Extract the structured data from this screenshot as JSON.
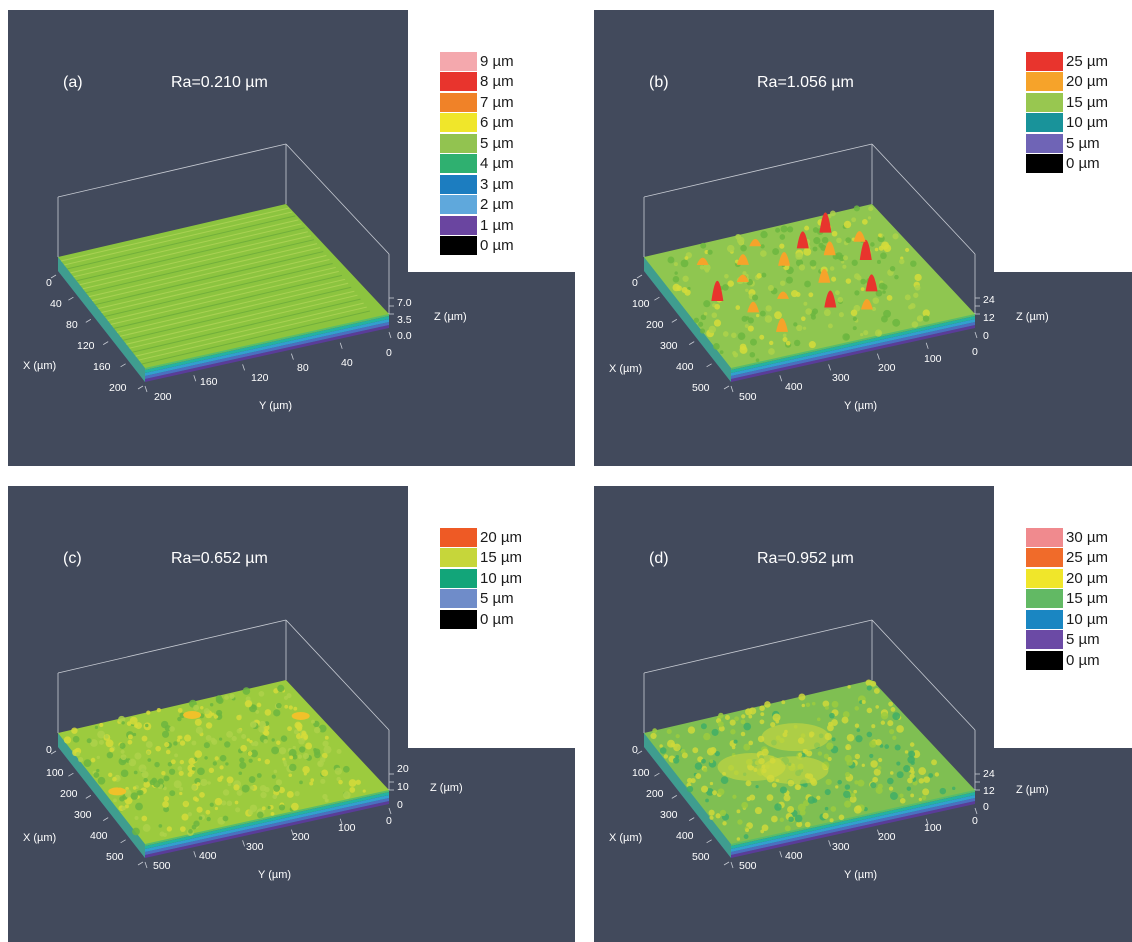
{
  "panels": [
    {
      "id": "a",
      "letter": "(a)",
      "ra": "Ra=0.210 µm",
      "legend": [
        {
          "label": "9 µm",
          "color": "#f4a8ad"
        },
        {
          "label": "8 µm",
          "color": "#e8342d"
        },
        {
          "label": "7 µm",
          "color": "#f08228"
        },
        {
          "label": "6 µm",
          "color": "#f0e62a"
        },
        {
          "label": "5 µm",
          "color": "#92c350"
        },
        {
          "label": "4 µm",
          "color": "#2fb070"
        },
        {
          "label": "3 µm",
          "color": "#1c7dc0"
        },
        {
          "label": "2 µm",
          "color": "#5fa8dc"
        },
        {
          "label": "1 µm",
          "color": "#6a45a0"
        },
        {
          "label": "0 µm",
          "color": "#000000"
        }
      ],
      "x_ticks": [
        "0",
        "40",
        "80",
        "120",
        "160",
        "200"
      ],
      "y_ticks": [
        "200",
        "160",
        "120",
        "80",
        "40",
        "0"
      ],
      "z_ticks": [
        "7.0",
        "3.5",
        "0.0"
      ],
      "x_label": "X (µm)",
      "y_label": "Y (µm)",
      "z_label": "Z (µm)",
      "surface": "striated"
    },
    {
      "id": "b",
      "letter": "(b)",
      "ra": "Ra=1.056 µm",
      "legend": [
        {
          "label": "25 µm",
          "color": "#e8342d"
        },
        {
          "label": "20 µm",
          "color": "#f6a32a"
        },
        {
          "label": "15 µm",
          "color": "#98c750"
        },
        {
          "label": "10 µm",
          "color": "#19939a"
        },
        {
          "label": "5 µm",
          "color": "#6f64b6"
        },
        {
          "label": "0 µm",
          "color": "#000000"
        }
      ],
      "x_ticks": [
        "0",
        "100",
        "200",
        "300",
        "400",
        "500"
      ],
      "y_ticks": [
        "500",
        "400",
        "300",
        "200",
        "100",
        "0"
      ],
      "z_ticks": [
        "24",
        "12",
        "0"
      ],
      "x_label": "X (µm)",
      "y_label": "Y (µm)",
      "z_label": "Z (µm)",
      "surface": "peaks"
    },
    {
      "id": "c",
      "letter": "(c)",
      "ra": "Ra=0.652 µm",
      "legend": [
        {
          "label": "20 µm",
          "color": "#ee5a25"
        },
        {
          "label": "15 µm",
          "color": "#c6d63a"
        },
        {
          "label": "10 µm",
          "color": "#12a579"
        },
        {
          "label": "5 µm",
          "color": "#6f8cc9"
        },
        {
          "label": "0 µm",
          "color": "#000000"
        }
      ],
      "x_ticks": [
        "0",
        "100",
        "200",
        "300",
        "400",
        "500"
      ],
      "y_ticks": [
        "500",
        "400",
        "300",
        "200",
        "100",
        "0"
      ],
      "z_ticks": [
        "20",
        "10",
        "0"
      ],
      "x_label": "X (µm)",
      "y_label": "Y (µm)",
      "z_label": "Z (µm)",
      "surface": "grainy"
    },
    {
      "id": "d",
      "letter": "(d)",
      "ra": "Ra=0.952 µm",
      "legend": [
        {
          "label": "30 µm",
          "color": "#f08a8e"
        },
        {
          "label": "25 µm",
          "color": "#f06b2a"
        },
        {
          "label": "20 µm",
          "color": "#f0e62a"
        },
        {
          "label": "15 µm",
          "color": "#62b964"
        },
        {
          "label": "10 µm",
          "color": "#1a86c2"
        },
        {
          "label": "5 µm",
          "color": "#6b4aa5"
        },
        {
          "label": "0 µm",
          "color": "#000000"
        }
      ],
      "x_ticks": [
        "0",
        "100",
        "200",
        "300",
        "400",
        "500"
      ],
      "y_ticks": [
        "500",
        "400",
        "300",
        "200",
        "100",
        "0"
      ],
      "z_ticks": [
        "24",
        "12",
        "0"
      ],
      "x_label": "X (µm)",
      "y_label": "Y (µm)",
      "z_label": "Z (µm)",
      "surface": "patchy"
    }
  ],
  "colors": {
    "background": "#424a5c",
    "axis_text": "#ffffff",
    "legend_text": "#1b1b1b"
  }
}
